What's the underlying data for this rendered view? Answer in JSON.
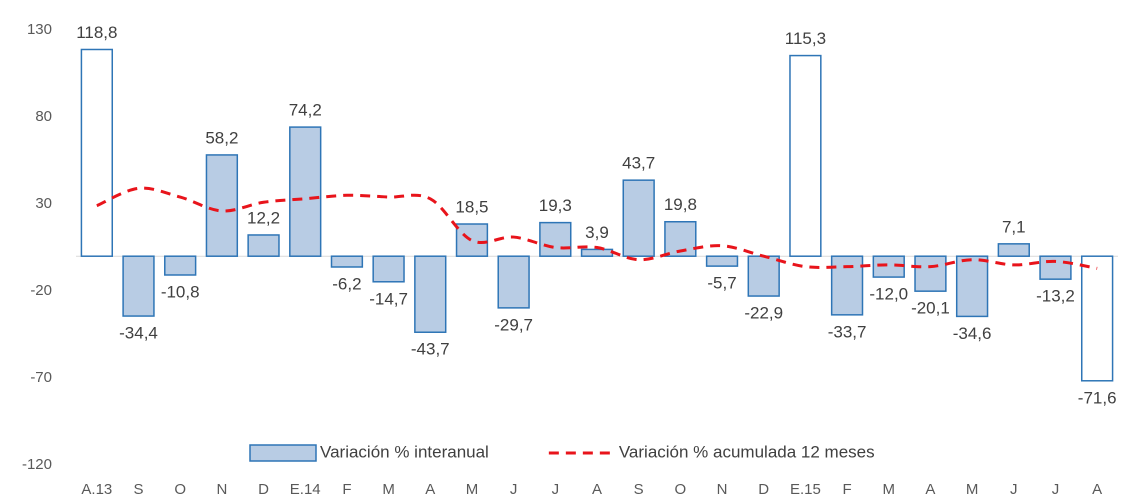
{
  "chart_data": {
    "type": "bar",
    "categories": [
      "A.13",
      "S",
      "O",
      "N",
      "D",
      "E.14",
      "F",
      "M",
      "A",
      "M",
      "J",
      "J",
      "A",
      "S",
      "O",
      "N",
      "D",
      "E.15",
      "F",
      "M",
      "A",
      "M",
      "J",
      "J",
      "A"
    ],
    "series": [
      {
        "name": "Variación % interanual",
        "type": "bar",
        "color": "#b8cce4",
        "stroke": "#2e75b6",
        "colors": [
          "#ffffff",
          "#b8cce4",
          "#b8cce4",
          "#b8cce4",
          "#b8cce4",
          "#b8cce4",
          "#b8cce4",
          "#b8cce4",
          "#b8cce4",
          "#b8cce4",
          "#b8cce4",
          "#b8cce4",
          "#b8cce4",
          "#b8cce4",
          "#b8cce4",
          "#b8cce4",
          "#b8cce4",
          "#ffffff",
          "#b8cce4",
          "#b8cce4",
          "#b8cce4",
          "#b8cce4",
          "#b8cce4",
          "#b8cce4",
          "#ffffff"
        ],
        "values": [
          118.8,
          -34.4,
          -10.8,
          58.2,
          12.2,
          74.2,
          -6.2,
          -14.7,
          -43.7,
          18.5,
          -29.7,
          19.3,
          3.9,
          43.7,
          19.8,
          -5.7,
          -22.9,
          115.3,
          -33.7,
          -12.0,
          -20.1,
          -34.6,
          7.1,
          -13.2,
          -71.6
        ],
        "value_labels": [
          "118,8",
          "-34,4",
          "-10,8",
          "58,2",
          "12,2",
          "74,2",
          "-6,2",
          "-14,7",
          "-43,7",
          "18,5",
          "-29,7",
          "19,3",
          "3,9",
          "43,7",
          "19,8",
          "-5,7",
          "-22,9",
          "115,3",
          "-33,7",
          "-12,0",
          "-20,1",
          "-34,6",
          "7,1",
          "-13,2",
          "-71,6"
        ]
      },
      {
        "name": "Variación % acumulada 12 meses",
        "type": "line",
        "color": "#e8141b",
        "dashed": true,
        "values": [
          29,
          39,
          34,
          26,
          31,
          33,
          35,
          34,
          33,
          9,
          11,
          5,
          5,
          -2,
          3,
          6,
          0,
          -6,
          -6,
          -5,
          -6,
          -2,
          -5,
          -3,
          -7
        ]
      }
    ],
    "ylim": [
      -120,
      130
    ],
    "yticks": [
      -120,
      -70,
      -20,
      30,
      80,
      130
    ],
    "grid": false,
    "legend": "bottom"
  }
}
